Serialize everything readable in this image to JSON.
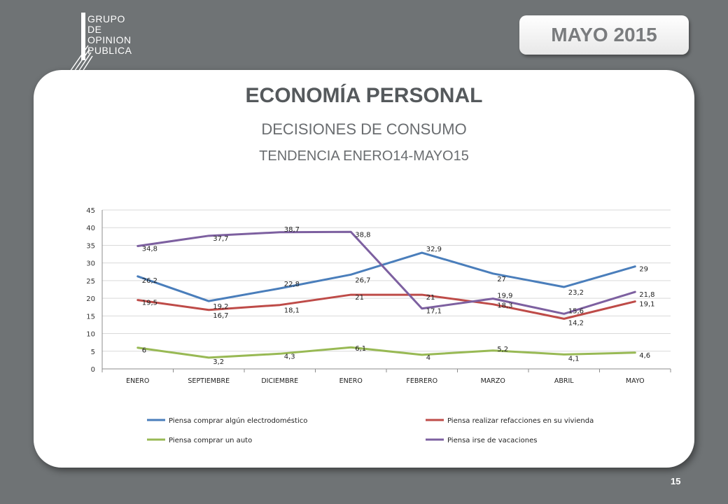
{
  "header": {
    "logo_lines": [
      "GRUPO",
      "DE",
      "OPINION",
      "PUBLICA"
    ],
    "date_badge": "MAYO 2015"
  },
  "card": {
    "title": "ECONOMÍA PERSONAL",
    "subtitle": "DECISIONES DE CONSUMO",
    "subtitle2": "TENDENCIA ENERO14-MAYO15"
  },
  "page_number": "15",
  "chart_data": {
    "type": "line",
    "categories": [
      "ENERO",
      "SEPTIEMBRE",
      "DICIEMBRE",
      "ENERO",
      "FEBRERO",
      "MARZO",
      "ABRIL",
      "MAYO"
    ],
    "ylim": [
      0,
      45
    ],
    "yticks": [
      0,
      5,
      10,
      15,
      20,
      25,
      30,
      35,
      40,
      45
    ],
    "grid": true,
    "legend_position": "bottom",
    "series": [
      {
        "name": "Piensa comprar algún electrodoméstico",
        "color": "#4a7ebb",
        "values": [
          26.2,
          19.2,
          22.8,
          26.7,
          32.9,
          27,
          23.2,
          29
        ],
        "labels": [
          "26,2",
          "19,2",
          "22,8",
          "26,7",
          "32,9",
          "27",
          "23,2",
          "29"
        ]
      },
      {
        "name": "Piensa realizar refacciones en su vivienda",
        "color": "#be4b48",
        "values": [
          19.5,
          16.7,
          18.1,
          21,
          21,
          18.3,
          14.2,
          19.1
        ],
        "labels": [
          "19,5",
          "16,7",
          "18,1",
          "21",
          "21",
          "18,3",
          "14,2",
          "19,1"
        ]
      },
      {
        "name": "Piensa comprar un auto",
        "color": "#98b954",
        "values": [
          6,
          3.2,
          4.3,
          6.1,
          4,
          5.2,
          4.1,
          4.6
        ],
        "labels": [
          "6",
          "3,2",
          "4,3",
          "6,1",
          "4",
          "5,2",
          "4,1",
          "4,6"
        ]
      },
      {
        "name": "Piensa irse de vacaciones",
        "color": "#7d60a0",
        "values": [
          34.8,
          37.7,
          38.7,
          38.8,
          17.1,
          19.9,
          15.6,
          21.8
        ],
        "labels": [
          "34,8",
          "37,7",
          "38,7",
          "38,8",
          "17,1",
          "19,9",
          "15,6",
          "21,8"
        ]
      }
    ]
  }
}
